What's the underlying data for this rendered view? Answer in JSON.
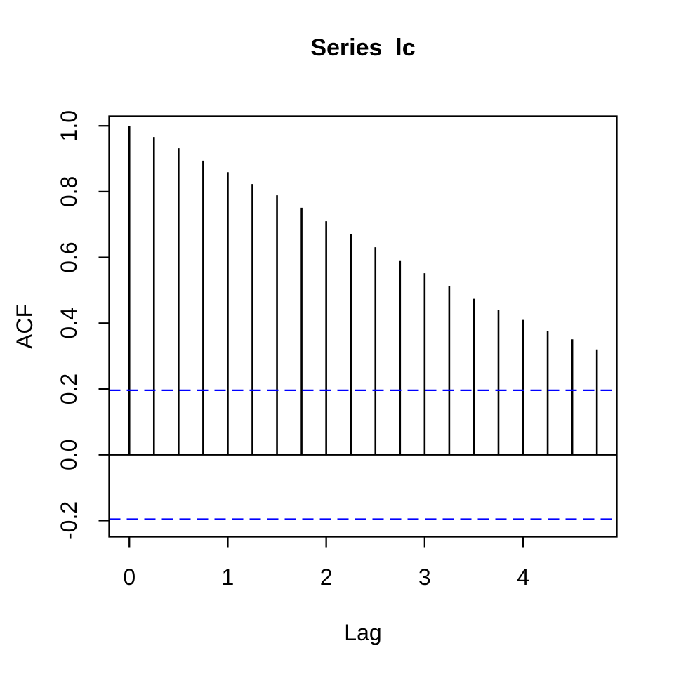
{
  "figure": {
    "title": "Series  lc",
    "background_color": "#FFFFFF"
  },
  "chart_data": {
    "type": "bar",
    "subtype": "autocorrelation",
    "title": "Series  lc",
    "xlabel": "Lag",
    "ylabel": "ACF",
    "x": [
      0,
      0.25,
      0.5,
      0.75,
      1,
      1.25,
      1.5,
      1.75,
      2,
      2.25,
      2.5,
      2.75,
      3,
      3.25,
      3.5,
      3.75,
      4,
      4.25,
      4.5,
      4.75
    ],
    "values": [
      1.0,
      0.966,
      0.932,
      0.894,
      0.859,
      0.823,
      0.789,
      0.751,
      0.71,
      0.671,
      0.631,
      0.589,
      0.552,
      0.512,
      0.474,
      0.44,
      0.41,
      0.377,
      0.351,
      0.32
    ],
    "x_ticks": {
      "values": [
        0,
        1,
        2,
        3,
        4
      ],
      "labels": [
        "0",
        "1",
        "2",
        "3",
        "4"
      ]
    },
    "y_ticks": {
      "values": [
        -0.2,
        0.0,
        0.2,
        0.4,
        0.6,
        0.8,
        1.0
      ],
      "labels": [
        "-0.2",
        "0.0",
        "0.2",
        "0.4",
        "0.6",
        "0.8",
        "1.0"
      ]
    },
    "xlim": [
      -0.205,
      4.952
    ],
    "ylim": [
      -0.2493,
      1.0293
    ],
    "zero_line": 0,
    "confidence_bounds": [
      0.196,
      -0.196
    ],
    "confidence_line_style": "dashed",
    "grid": false,
    "legend_position": "none",
    "colors": {
      "bars": "#000000",
      "axis": "#000000",
      "confidence": "#0000FF",
      "background": "#FFFFFF"
    }
  }
}
